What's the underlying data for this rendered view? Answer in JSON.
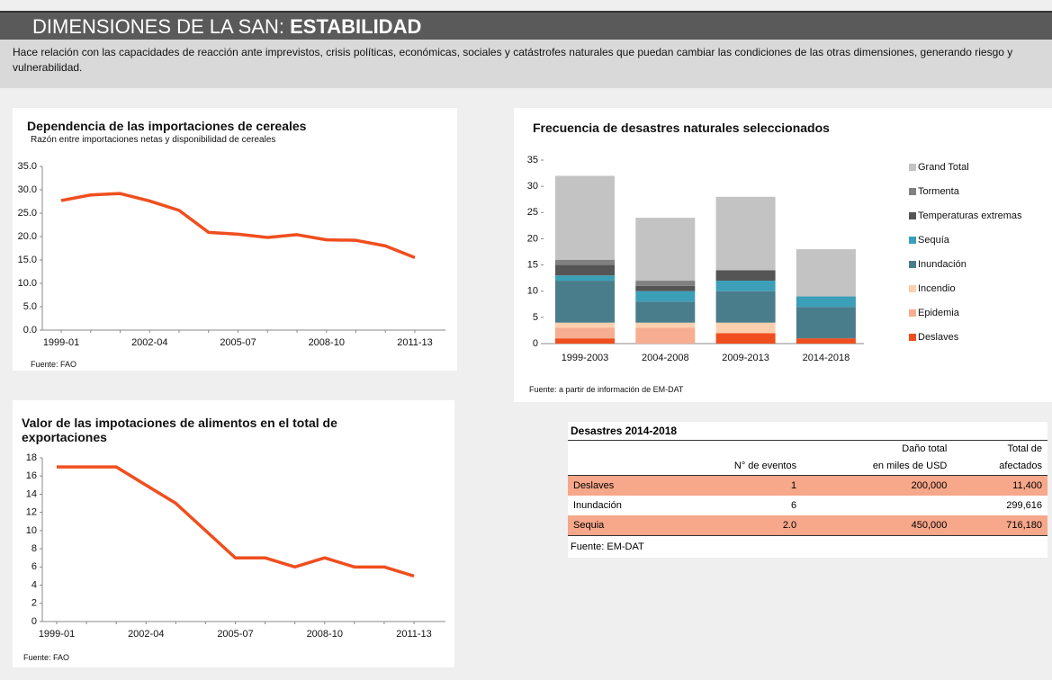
{
  "header": {
    "title": "DIMENSIONES DE LA SAN:",
    "title_emphasis": "ESTABILIDAD",
    "description": "Hace relación con las capacidades de reacción ante imprevistos, crisis políticas, económicas, sociales y catástrofes naturales que puedan cambiar las condiciones de las otras dimensiones, generando riesgo y vulnerabilidad."
  },
  "chart_data": [
    {
      "type": "line",
      "title": "Dependencia de las importaciones de cereales",
      "subtitle": "Razón entre importaciones netas y disponibilidad de cereales",
      "source": "Fuente: FAO",
      "color": "#f04e1e",
      "categories": [
        "1999-01",
        null,
        null,
        "2002-04",
        null,
        null,
        "2005-07",
        null,
        null,
        "2008-10",
        null,
        null,
        "2011-13"
      ],
      "values": [
        27.7,
        28.9,
        29.2,
        27.6,
        25.6,
        20.9,
        20.5,
        19.8,
        20.4,
        19.3,
        19.2,
        18.0,
        15.5
      ],
      "ylim": [
        0,
        35
      ],
      "yticks": [
        {
          "value": 0,
          "label": "0.0"
        },
        {
          "value": 5,
          "label": "5.0"
        },
        {
          "value": 10,
          "label": "10.0"
        },
        {
          "value": 15,
          "label": "15.0"
        },
        {
          "value": 20,
          "label": "20.0"
        },
        {
          "value": 25,
          "label": "25.0"
        },
        {
          "value": 30,
          "label": "30.0"
        },
        {
          "value": 35,
          "label": "35.0"
        }
      ]
    },
    {
      "type": "stacked_bar",
      "title": "Frecuencia de desastres naturales seleccionados",
      "source": "Fuente: a partir de información de EM-DAT",
      "legend": "right",
      "categories": [
        "1999-2003",
        "2004-2008",
        "2009-2013",
        "2014-2018"
      ],
      "series": [
        {
          "name": "Deslaves",
          "color": "#f04e1e",
          "values": [
            1,
            0,
            2,
            1
          ]
        },
        {
          "name": "Epidemia",
          "color": "#f7ad91",
          "values": [
            2,
            3,
            0,
            0
          ]
        },
        {
          "name": "Incendio",
          "color": "#fccfae",
          "values": [
            1,
            1,
            2,
            0
          ]
        },
        {
          "name": "Inundación",
          "color": "#4a7d8b",
          "values": [
            8,
            4,
            6,
            6
          ]
        },
        {
          "name": "Sequía",
          "color": "#3b9fb8",
          "values": [
            1,
            2,
            2,
            2
          ]
        },
        {
          "name": "Temperaturas extremas",
          "color": "#555555",
          "values": [
            2,
            1,
            2,
            0
          ]
        },
        {
          "name": "Tormenta",
          "color": "#808080",
          "values": [
            1,
            1,
            0,
            0
          ]
        },
        {
          "name": "Grand Total",
          "color": "#c3c3c3",
          "values": [
            16,
            12,
            14,
            9
          ]
        }
      ],
      "ylim": [
        0,
        35
      ],
      "yticks": [
        0,
        5,
        10,
        15,
        20,
        25,
        30,
        35
      ]
    },
    {
      "type": "line",
      "title": "Valor de las impotaciones de alimentos en el total de exportaciones",
      "source": "Fuente: FAO",
      "color": "#f04e1e",
      "categories": [
        "1999-01",
        null,
        null,
        "2002-04",
        null,
        null,
        "2005-07",
        null,
        null,
        "2008-10",
        null,
        null,
        "2011-13"
      ],
      "values": [
        17,
        17,
        17,
        15,
        13,
        10,
        7,
        7,
        6,
        7,
        6,
        6,
        5
      ],
      "ylim": [
        0,
        18
      ],
      "yticks": [
        0,
        2,
        4,
        6,
        8,
        10,
        12,
        14,
        16,
        18
      ]
    }
  ],
  "table": {
    "title": "Desastres 2014-2018",
    "header_top": [
      null,
      null,
      "Daño total",
      "Total de"
    ],
    "header_bottom": [
      null,
      "N° de eventos",
      "en miles de USD",
      "afectados"
    ],
    "rows": [
      [
        "Deslaves",
        "1",
        "200,000",
        "11,400"
      ],
      [
        "Inundación",
        "6",
        null,
        "299,616"
      ],
      [
        "Sequia",
        "2.0",
        "450,000",
        "716,180"
      ]
    ],
    "source": "Fuente: EM-DAT"
  }
}
